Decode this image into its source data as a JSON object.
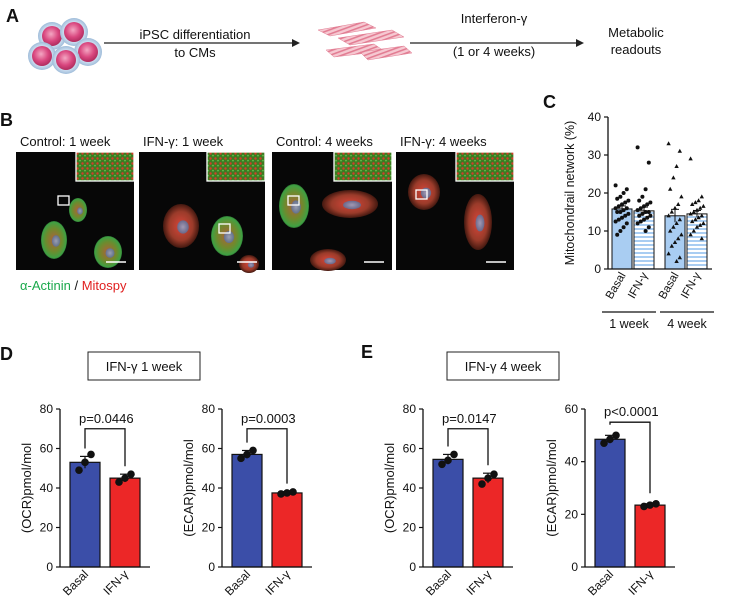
{
  "panels": {
    "a": "A",
    "b": "B",
    "c": "C",
    "d": "D",
    "e": "E"
  },
  "workflow": {
    "step1_line1": "iPSC differentiation",
    "step1_line2": "to CMs",
    "step2_line1": "Interferon-γ",
    "step2_line2": "(1 or 4 weeks)",
    "step3_line1": "Metabolic",
    "step3_line2": "readouts"
  },
  "micro": {
    "labels": [
      "Control: 1 week",
      "IFN-γ: 1 week",
      "Control: 4 weeks",
      "IFN-γ: 4 weeks"
    ],
    "legend_green": "α-Actinin",
    "legend_sep": " / ",
    "legend_red": "Mitospy"
  },
  "colors": {
    "basal": "#3b4ea8",
    "ifn": "#ec2727",
    "mito_bar": "#a9cdf2",
    "green": "#1aa84b",
    "red": "#e01f1f"
  },
  "chart_data": [
    {
      "id": "C",
      "type": "bar",
      "ylabel": "Mitochondrail network (%)",
      "ylim": [
        0,
        40
      ],
      "yticks": [
        0,
        10,
        20,
        30,
        40
      ],
      "categories": [
        "Basal",
        "IFN-γ",
        "Basal",
        "IFN-γ"
      ],
      "groups": [
        "1 week",
        "4 week"
      ],
      "values": [
        15.8,
        15.3,
        14.0,
        14.5
      ],
      "errors": [
        0.8,
        1.0,
        1.7,
        0.9
      ],
      "points": [
        [
          22,
          21,
          20,
          19,
          18.5,
          18,
          17.5,
          17,
          16.5,
          16,
          16,
          15.5,
          15,
          15,
          14.5,
          14,
          13.5,
          13,
          12.5,
          12,
          11,
          10,
          9
        ],
        [
          32,
          28,
          21,
          19,
          18,
          17.5,
          17,
          16.5,
          16,
          15.5,
          15,
          15,
          14.5,
          14,
          14,
          13.5,
          13,
          12.5,
          12,
          11,
          10
        ],
        [
          33,
          31,
          27,
          24,
          21,
          19,
          17,
          16,
          15,
          14,
          13,
          12,
          11,
          10,
          9,
          8,
          7,
          6,
          4,
          3,
          2
        ],
        [
          29,
          19,
          18,
          17.5,
          17,
          16.5,
          16,
          15.5,
          15,
          14.5,
          14,
          13.5,
          13,
          12.5,
          12,
          11.5,
          11,
          10,
          9,
          8
        ]
      ]
    },
    {
      "id": "D1",
      "type": "bar",
      "title": "IFN-γ 1 week",
      "ylabel": "(OCR)pmol/mol",
      "ylim": [
        0,
        80
      ],
      "yticks": [
        0,
        20,
        40,
        60,
        80
      ],
      "categories": [
        "Basal",
        "IFN-γ"
      ],
      "values": [
        53,
        45
      ],
      "errors": [
        3,
        2
      ],
      "points": [
        [
          49,
          53,
          57
        ],
        [
          43,
          45,
          47
        ]
      ],
      "pvalue": "p=0.0446"
    },
    {
      "id": "D2",
      "type": "bar",
      "ylabel": "(ECAR)pmol/mol",
      "ylim": [
        0,
        80
      ],
      "yticks": [
        0,
        20,
        40,
        60,
        80
      ],
      "categories": [
        "Basal",
        "IFN-γ"
      ],
      "values": [
        57,
        37.5
      ],
      "errors": [
        2,
        0.7
      ],
      "points": [
        [
          55,
          57,
          59
        ],
        [
          37,
          37.5,
          38
        ]
      ],
      "pvalue": "p=0.0003"
    },
    {
      "id": "E1",
      "type": "bar",
      "title": "IFN-γ 4 week",
      "ylabel": "(OCR)pmol/mol",
      "ylim": [
        0,
        80
      ],
      "yticks": [
        0,
        20,
        40,
        60,
        80
      ],
      "categories": [
        "Basal",
        "IFN-γ"
      ],
      "values": [
        54.5,
        45
      ],
      "errors": [
        2.5,
        2.5
      ],
      "points": [
        [
          52,
          54,
          57
        ],
        [
          42,
          45,
          47
        ]
      ],
      "pvalue": "p=0.0147"
    },
    {
      "id": "E2",
      "type": "bar",
      "ylabel": "(ECAR)pmol/mol",
      "ylim": [
        0,
        60
      ],
      "yticks": [
        0,
        20,
        40,
        60
      ],
      "categories": [
        "Basal",
        "IFN-γ"
      ],
      "values": [
        48.5,
        23.5
      ],
      "errors": [
        1.5,
        0.5
      ],
      "points": [
        [
          47,
          48.5,
          50
        ],
        [
          23,
          23.5,
          24
        ]
      ],
      "pvalue": "p<0.0001"
    }
  ]
}
